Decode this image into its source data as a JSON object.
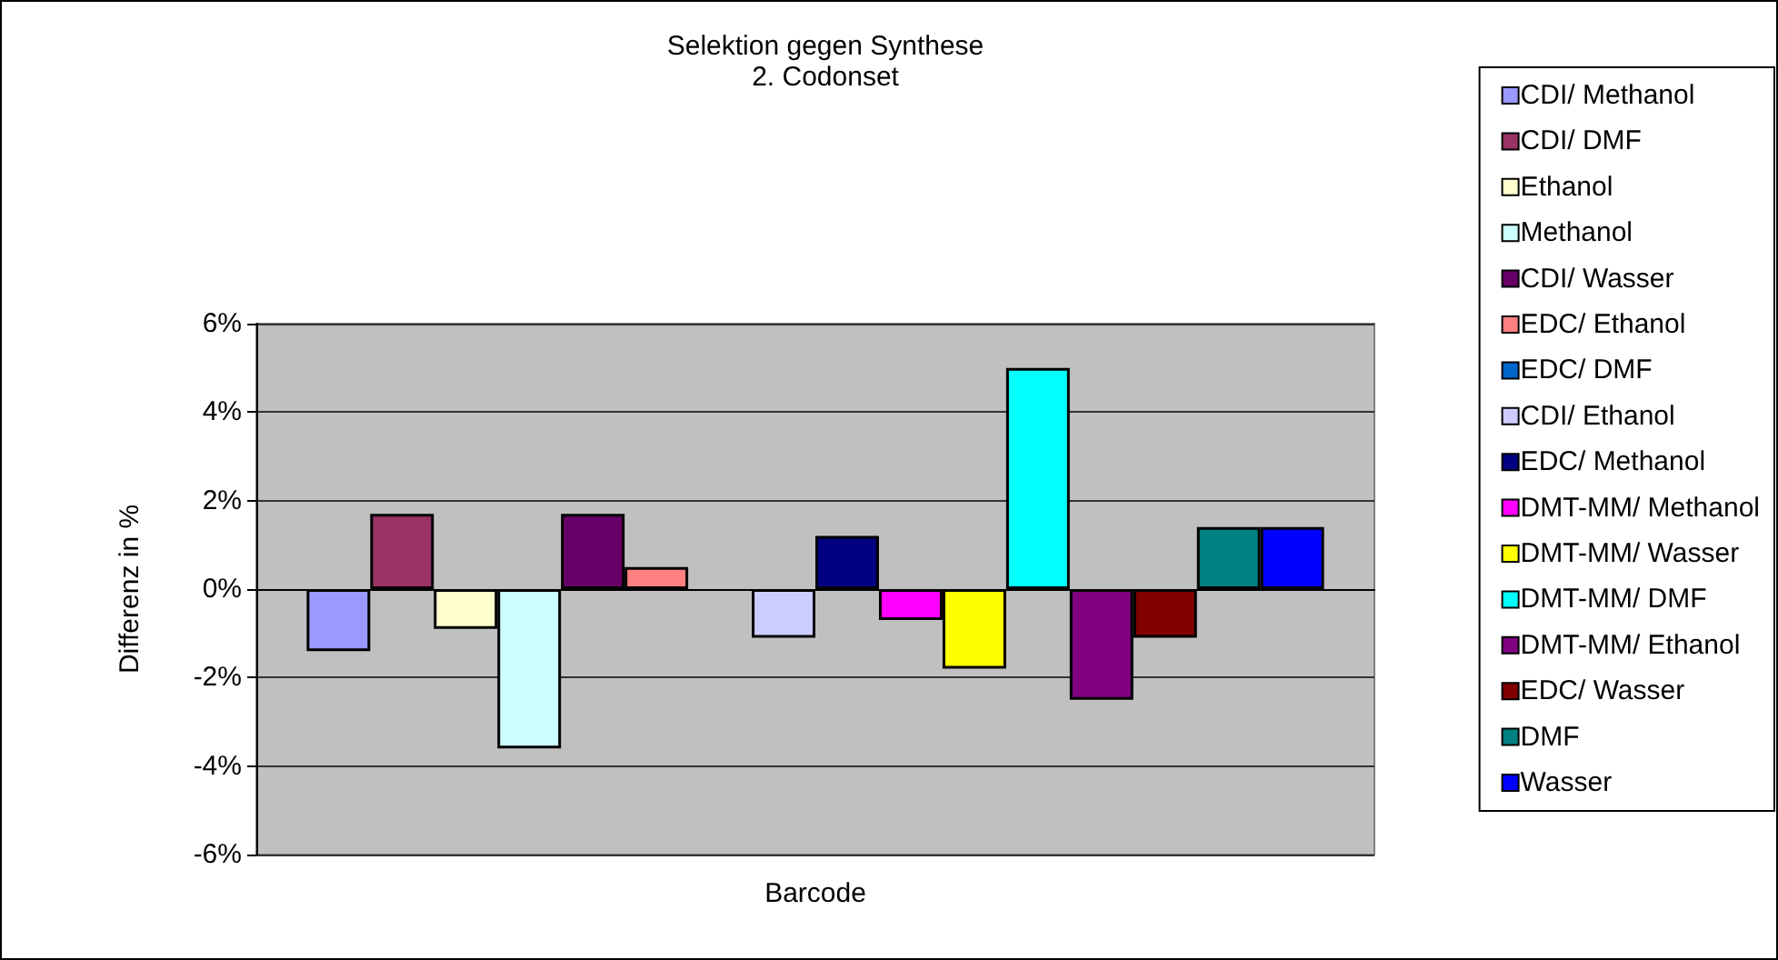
{
  "chart_data": {
    "type": "bar",
    "title": "Selektion gegen Synthese",
    "subtitle": "2. Codonset",
    "xlabel": "Barcode",
    "ylabel": "Differenz in %",
    "categories": [
      null
    ],
    "series": [
      {
        "name": "CDI/ Methanol",
        "color": "#9999ff",
        "values": [
          -1.4
        ]
      },
      {
        "name": "CDI/ DMF",
        "color": "#993366",
        "values": [
          1.7
        ]
      },
      {
        "name": "Ethanol",
        "color": "#ffffcc",
        "values": [
          -0.9
        ]
      },
      {
        "name": "Methanol",
        "color": "#ccffff",
        "values": [
          -3.6
        ]
      },
      {
        "name": "CDI/ Wasser",
        "color": "#660066",
        "values": [
          1.7
        ]
      },
      {
        "name": "EDC/ Ethanol",
        "color": "#ff8080",
        "values": [
          0.5
        ]
      },
      {
        "name": "EDC/ DMF",
        "color": "#0066cc",
        "values": [
          null
        ]
      },
      {
        "name": "CDI/ Ethanol",
        "color": "#ccccff",
        "values": [
          -1.1
        ]
      },
      {
        "name": "EDC/ Methanol",
        "color": "#000080",
        "values": [
          1.2
        ]
      },
      {
        "name": "DMT-MM/ Methanol",
        "color": "#ff00ff",
        "values": [
          -0.7
        ]
      },
      {
        "name": "DMT-MM/ Wasser",
        "color": "#ffff00",
        "values": [
          -1.8
        ]
      },
      {
        "name": "DMT-MM/ DMF",
        "color": "#00ffff",
        "values": [
          5
        ]
      },
      {
        "name": "DMT-MM/ Ethanol",
        "color": "#800080",
        "values": [
          -2.5
        ]
      },
      {
        "name": "EDC/ Wasser",
        "color": "#800000",
        "values": [
          -1.1
        ]
      },
      {
        "name": "DMF",
        "color": "#008080",
        "values": [
          1.4
        ]
      },
      {
        "name": "Wasser",
        "color": "#0000ff",
        "values": [
          1.4
        ]
      }
    ],
    "ylim": [
      -6,
      6
    ],
    "yticks": [
      {
        "value": -6,
        "label": "-6%"
      },
      {
        "value": -4,
        "label": "-4%"
      },
      {
        "value": -2,
        "label": "-2%"
      },
      {
        "value": 0,
        "label": "0%"
      },
      {
        "value": 2,
        "label": "2%"
      },
      {
        "value": 4,
        "label": "4%"
      },
      {
        "value": 6,
        "label": "6%"
      }
    ],
    "grid": "y",
    "legend": "right"
  }
}
